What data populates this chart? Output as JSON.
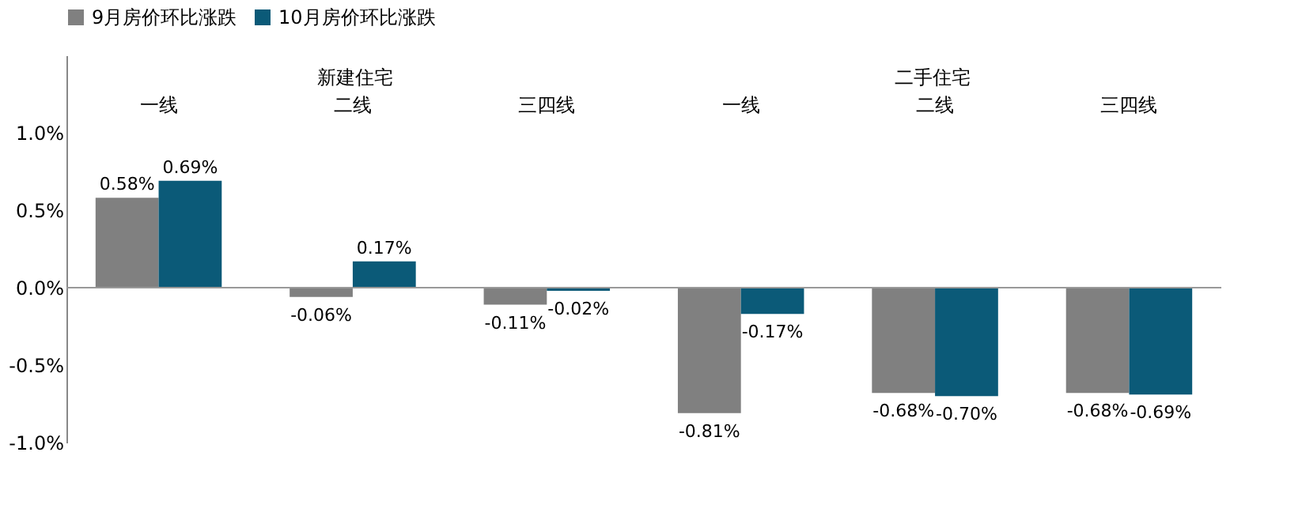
{
  "chart_data": {
    "type": "bar",
    "categories": [
      "一线",
      "二线",
      "三四线",
      "一线",
      "二线",
      "三四线"
    ],
    "annotations": [
      "新建住宅",
      "二手住宅"
    ],
    "series": [
      {
        "name": "9月房价环比涨跌",
        "color": "#808080",
        "values": [
          0.58,
          -0.06,
          -0.11,
          -0.81,
          -0.68,
          -0.68
        ],
        "value_labels": [
          "0.58%",
          "-0.06%",
          "-0.11%",
          "-0.81%",
          "-0.68%",
          "-0.68%"
        ]
      },
      {
        "name": "10月房价环比涨跌",
        "color": "#0b5a78",
        "values": [
          0.69,
          0.17,
          -0.02,
          -0.17,
          -0.7,
          -0.69
        ],
        "value_labels": [
          "0.69%",
          "0.17%",
          "-0.02%",
          "-0.17%",
          "-0.70%",
          "-0.69%"
        ]
      }
    ],
    "ylim": [
      -1.0,
      1.5
    ],
    "yticks": [
      {
        "value": -1.0,
        "label": "-1.0%"
      },
      {
        "value": -0.5,
        "label": "-0.5%"
      },
      {
        "value": 0.0,
        "label": "0.0%"
      },
      {
        "value": 0.5,
        "label": "0.5%"
      },
      {
        "value": 1.0,
        "label": "1.0%"
      }
    ],
    "ref_lines": [
      {
        "axis": "y",
        "value": 0,
        "color": "#999999"
      }
    ],
    "grid": false,
    "legend": "top"
  }
}
